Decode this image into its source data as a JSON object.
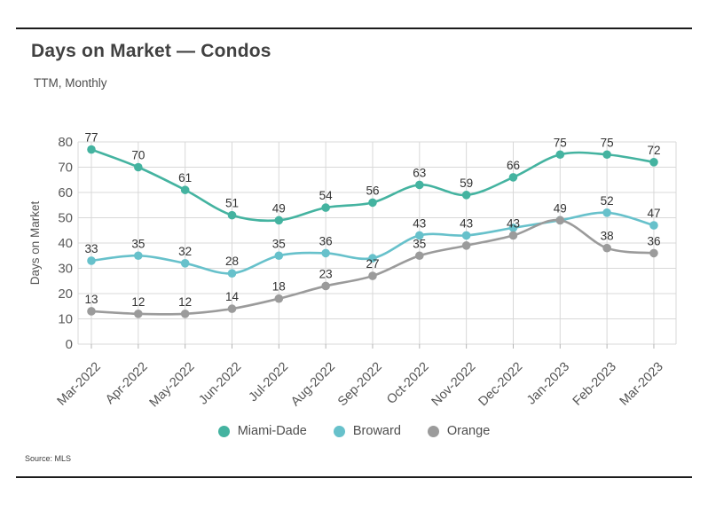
{
  "header": {
    "title": "Days on Market — Condos",
    "subtitle": "TTM, Monthly"
  },
  "source_label": "Source: MLS",
  "colors": {
    "miami_dade": "#44b3a0",
    "broward": "#67c1cb",
    "orange": "#9b9b9b",
    "grid": "#d8d8d8",
    "axis_text": "#5a5a5a",
    "data_label": "#333333",
    "rule": "#1c1c1c"
  },
  "chart_data": {
    "type": "line",
    "title": "Days on Market — Condos",
    "subtitle": "TTM, Monthly",
    "xlabel": "",
    "ylabel": "Days on Market",
    "ylim": [
      0,
      80
    ],
    "ytick_step": 10,
    "grid": true,
    "legend_position": "bottom",
    "categories": [
      "Mar-2022",
      "Apr-2022",
      "May-2022",
      "Jun-2022",
      "Jul-2022",
      "Aug-2022",
      "Sep-2022",
      "Oct-2022",
      "Nov-2022",
      "Dec-2022",
      "Jan-2023",
      "Feb-2023",
      "Mar-2023"
    ],
    "series": [
      {
        "name": "Miami-Dade",
        "color": "#44b3a0",
        "values": [
          77,
          70,
          61,
          51,
          49,
          54,
          56,
          63,
          59,
          66,
          75,
          75,
          72
        ],
        "point_labels": [
          "77",
          "70",
          "61",
          "51",
          "49",
          "54",
          "56",
          "63",
          "59",
          "66",
          "75",
          "75",
          "72"
        ]
      },
      {
        "name": "Broward",
        "color": "#67c1cb",
        "values": [
          33,
          35,
          32,
          28,
          35,
          36,
          34,
          43,
          43,
          46,
          49,
          52,
          47
        ],
        "point_labels": [
          "33",
          "35",
          "32",
          "28",
          "35",
          "36",
          "",
          "43",
          "43",
          "",
          "",
          "52",
          "47"
        ]
      },
      {
        "name": "Orange",
        "color": "#9b9b9b",
        "values": [
          13,
          12,
          12,
          14,
          18,
          23,
          27,
          35,
          39,
          43,
          49,
          38,
          36
        ],
        "point_labels": [
          "13",
          "12",
          "12",
          "14",
          "18",
          "23",
          "27",
          "35",
          "",
          "43",
          "49",
          "38",
          "36"
        ]
      }
    ]
  }
}
